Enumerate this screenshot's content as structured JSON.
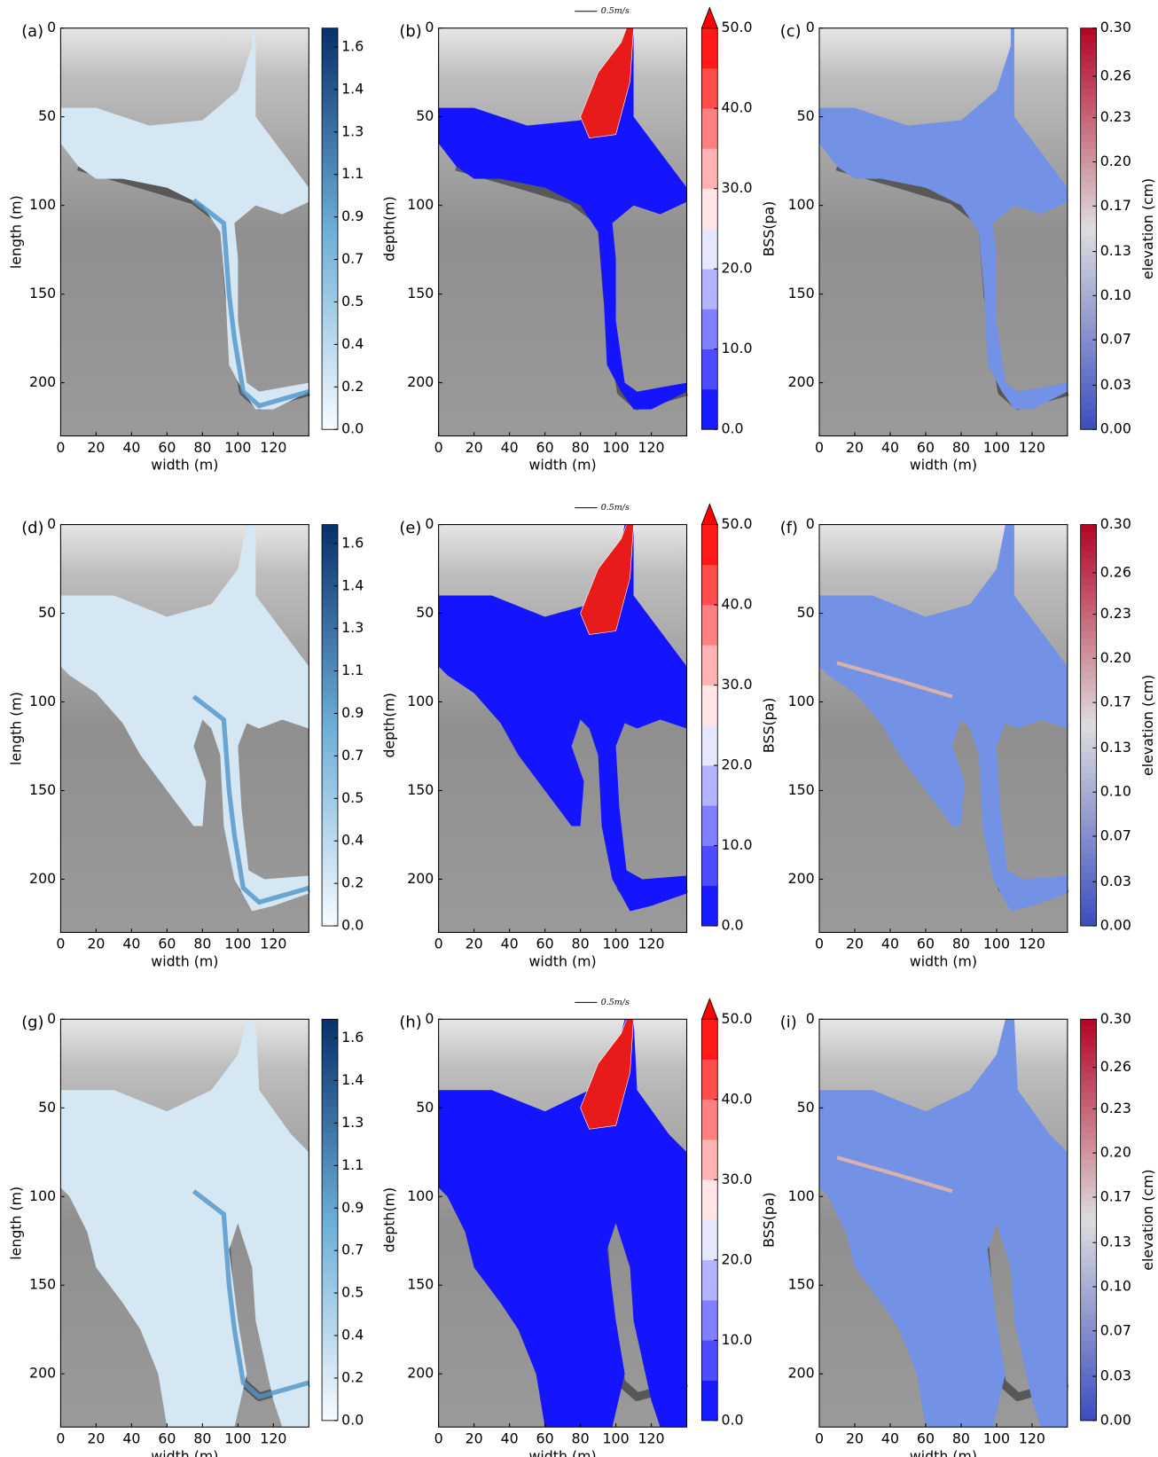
{
  "chart_data": [
    {
      "type": "heatmap",
      "panel_label": "(a)",
      "xlabel": "width (m)",
      "ylabel": "length (m)",
      "xlim": [
        0,
        140
      ],
      "xticks": [
        0,
        20,
        40,
        60,
        80,
        100,
        120
      ],
      "ylim": [
        230,
        0
      ],
      "yticks": [
        0,
        50,
        100,
        150,
        200
      ],
      "colorbar": {
        "label": "depth(m)",
        "lim": [
          0,
          1.7
        ],
        "colors": [
          "#f7fbff",
          "#6baed6",
          "#08306b"
        ],
        "ticks": [
          {
            "value": 0,
            "label": "0.0"
          },
          {
            "value": 0.18,
            "label": "0.2"
          },
          {
            "value": 0.36,
            "label": "0.4"
          },
          {
            "value": 0.54,
            "label": "0.5"
          },
          {
            "value": 0.72,
            "label": "0.7"
          },
          {
            "value": 0.9,
            "label": "0.9"
          },
          {
            "value": 1.08,
            "label": "1.1"
          },
          {
            "value": 1.26,
            "label": "1.3"
          },
          {
            "value": 1.44,
            "label": "1.4"
          },
          {
            "value": 1.62,
            "label": "1.6"
          }
        ]
      }
    },
    {
      "type": "heatmap",
      "panel_label": "(b)",
      "xlabel": "width (m)",
      "xlim": [
        0,
        140
      ],
      "xticks": [
        0,
        20,
        40,
        60,
        80,
        100,
        120
      ],
      "ylim": [
        230,
        0
      ],
      "yticks": [
        0,
        50,
        100,
        150,
        200
      ],
      "arrow_key": "0.5m/s",
      "colorbar": {
        "label": "BSS(pa)",
        "lim": [
          0,
          50
        ],
        "levels": 10,
        "extend": "max",
        "colors": [
          "#0000ff",
          "#ffffff",
          "#ff0000"
        ],
        "ticks": [
          {
            "value": 0,
            "label": "0.0"
          },
          {
            "value": 10,
            "label": "10.0"
          },
          {
            "value": 20,
            "label": "20.0"
          },
          {
            "value": 30,
            "label": "30.0"
          },
          {
            "value": 40,
            "label": "40.0"
          },
          {
            "value": 50,
            "label": "50.0"
          }
        ]
      }
    },
    {
      "type": "heatmap",
      "panel_label": "(c)",
      "xlabel": "width (m)",
      "xlim": [
        0,
        140
      ],
      "xticks": [
        0,
        20,
        40,
        60,
        80,
        100,
        120
      ],
      "ylim": [
        230,
        0
      ],
      "yticks": [
        0,
        50,
        100,
        150,
        200
      ],
      "colorbar": {
        "label": "elevation (cm)",
        "lim": [
          0,
          0.3
        ],
        "colors": [
          "#3b4cc0",
          "#dddddd",
          "#b40426"
        ],
        "ticks": [
          {
            "value": 0,
            "label": "0.00"
          },
          {
            "value": 0.033,
            "label": "0.03"
          },
          {
            "value": 0.067,
            "label": "0.07"
          },
          {
            "value": 0.1,
            "label": "0.10"
          },
          {
            "value": 0.133,
            "label": "0.13"
          },
          {
            "value": 0.167,
            "label": "0.17"
          },
          {
            "value": 0.2,
            "label": "0.20"
          },
          {
            "value": 0.233,
            "label": "0.23"
          },
          {
            "value": 0.264,
            "label": "0.26"
          },
          {
            "value": 0.3,
            "label": "0.30"
          }
        ]
      }
    },
    {
      "type": "heatmap",
      "panel_label": "(d)",
      "xlabel": "width (m)",
      "ylabel": "length (m)",
      "xlim": [
        0,
        140
      ],
      "xticks": [
        0,
        20,
        40,
        60,
        80,
        100,
        120
      ],
      "ylim": [
        230,
        0
      ],
      "yticks": [
        0,
        50,
        100,
        150,
        200
      ],
      "colorbar": {
        "label": "depth(m)",
        "lim": [
          0,
          1.7
        ],
        "colors": [
          "#f7fbff",
          "#6baed6",
          "#08306b"
        ],
        "ticks": [
          {
            "value": 0,
            "label": "0.0"
          },
          {
            "value": 0.18,
            "label": "0.2"
          },
          {
            "value": 0.36,
            "label": "0.4"
          },
          {
            "value": 0.54,
            "label": "0.5"
          },
          {
            "value": 0.72,
            "label": "0.7"
          },
          {
            "value": 0.9,
            "label": "0.9"
          },
          {
            "value": 1.08,
            "label": "1.1"
          },
          {
            "value": 1.26,
            "label": "1.3"
          },
          {
            "value": 1.44,
            "label": "1.4"
          },
          {
            "value": 1.62,
            "label": "1.6"
          }
        ]
      }
    },
    {
      "type": "heatmap",
      "panel_label": "(e)",
      "xlabel": "width (m)",
      "xlim": [
        0,
        140
      ],
      "xticks": [
        0,
        20,
        40,
        60,
        80,
        100,
        120
      ],
      "ylim": [
        230,
        0
      ],
      "yticks": [
        0,
        50,
        100,
        150,
        200
      ],
      "arrow_key": "0.5m/s",
      "colorbar": {
        "label": "BSS(pa)",
        "lim": [
          0,
          50
        ],
        "levels": 10,
        "extend": "max",
        "colors": [
          "#0000ff",
          "#ffffff",
          "#ff0000"
        ],
        "ticks": [
          {
            "value": 0,
            "label": "0.0"
          },
          {
            "value": 10,
            "label": "10.0"
          },
          {
            "value": 20,
            "label": "20.0"
          },
          {
            "value": 30,
            "label": "30.0"
          },
          {
            "value": 40,
            "label": "40.0"
          },
          {
            "value": 50,
            "label": "50.0"
          }
        ]
      }
    },
    {
      "type": "heatmap",
      "panel_label": "(f)",
      "xlabel": "width (m)",
      "xlim": [
        0,
        140
      ],
      "xticks": [
        0,
        20,
        40,
        60,
        80,
        100,
        120
      ],
      "ylim": [
        230,
        0
      ],
      "yticks": [
        0,
        50,
        100,
        150,
        200
      ],
      "colorbar": {
        "label": "elevation (cm)",
        "lim": [
          0,
          0.3
        ],
        "colors": [
          "#3b4cc0",
          "#dddddd",
          "#b40426"
        ],
        "ticks": [
          {
            "value": 0,
            "label": "0.00"
          },
          {
            "value": 0.033,
            "label": "0.03"
          },
          {
            "value": 0.067,
            "label": "0.07"
          },
          {
            "value": 0.1,
            "label": "0.10"
          },
          {
            "value": 0.133,
            "label": "0.13"
          },
          {
            "value": 0.167,
            "label": "0.17"
          },
          {
            "value": 0.2,
            "label": "0.20"
          },
          {
            "value": 0.233,
            "label": "0.23"
          },
          {
            "value": 0.264,
            "label": "0.26"
          },
          {
            "value": 0.3,
            "label": "0.30"
          }
        ]
      }
    },
    {
      "type": "heatmap",
      "panel_label": "(g)",
      "xlabel": "width (m)",
      "ylabel": "length (m)",
      "xlim": [
        0,
        140
      ],
      "xticks": [
        0,
        20,
        40,
        60,
        80,
        100,
        120
      ],
      "ylim": [
        230,
        0
      ],
      "yticks": [
        0,
        50,
        100,
        150,
        200
      ],
      "colorbar": {
        "label": "depth(m)",
        "lim": [
          0,
          1.7
        ],
        "colors": [
          "#f7fbff",
          "#6baed6",
          "#08306b"
        ],
        "ticks": [
          {
            "value": 0,
            "label": "0.0"
          },
          {
            "value": 0.18,
            "label": "0.2"
          },
          {
            "value": 0.36,
            "label": "0.4"
          },
          {
            "value": 0.54,
            "label": "0.5"
          },
          {
            "value": 0.72,
            "label": "0.7"
          },
          {
            "value": 0.9,
            "label": "0.9"
          },
          {
            "value": 1.08,
            "label": "1.1"
          },
          {
            "value": 1.26,
            "label": "1.3"
          },
          {
            "value": 1.44,
            "label": "1.4"
          },
          {
            "value": 1.62,
            "label": "1.6"
          }
        ]
      }
    },
    {
      "type": "heatmap",
      "panel_label": "(h)",
      "xlabel": "width (m)",
      "xlim": [
        0,
        140
      ],
      "xticks": [
        0,
        20,
        40,
        60,
        80,
        100,
        120
      ],
      "ylim": [
        230,
        0
      ],
      "yticks": [
        0,
        50,
        100,
        150,
        200
      ],
      "arrow_key": "0.5m/s",
      "colorbar": {
        "label": "BSS(pa)",
        "lim": [
          0,
          50
        ],
        "levels": 10,
        "extend": "max",
        "colors": [
          "#0000ff",
          "#ffffff",
          "#ff0000"
        ],
        "ticks": [
          {
            "value": 0,
            "label": "0.0"
          },
          {
            "value": 10,
            "label": "10.0"
          },
          {
            "value": 20,
            "label": "20.0"
          },
          {
            "value": 30,
            "label": "30.0"
          },
          {
            "value": 40,
            "label": "40.0"
          },
          {
            "value": 50,
            "label": "50.0"
          }
        ]
      }
    },
    {
      "type": "heatmap",
      "panel_label": "(i)",
      "xlabel": "width (m)",
      "xlim": [
        0,
        140
      ],
      "xticks": [
        0,
        20,
        40,
        60,
        80,
        100,
        120
      ],
      "ylim": [
        230,
        0
      ],
      "yticks": [
        0,
        50,
        100,
        150,
        200
      ],
      "colorbar": {
        "label": "elevation (cm)",
        "lim": [
          0,
          0.3
        ],
        "colors": [
          "#3b4cc0",
          "#dddddd",
          "#b40426"
        ],
        "ticks": [
          {
            "value": 0,
            "label": "0.00"
          },
          {
            "value": 0.033,
            "label": "0.03"
          },
          {
            "value": 0.067,
            "label": "0.07"
          },
          {
            "value": 0.1,
            "label": "0.10"
          },
          {
            "value": 0.133,
            "label": "0.13"
          },
          {
            "value": 0.167,
            "label": "0.17"
          },
          {
            "value": 0.2,
            "label": "0.20"
          },
          {
            "value": 0.233,
            "label": "0.23"
          },
          {
            "value": 0.264,
            "label": "0.26"
          },
          {
            "value": 0.3,
            "label": "0.30"
          }
        ]
      }
    }
  ]
}
